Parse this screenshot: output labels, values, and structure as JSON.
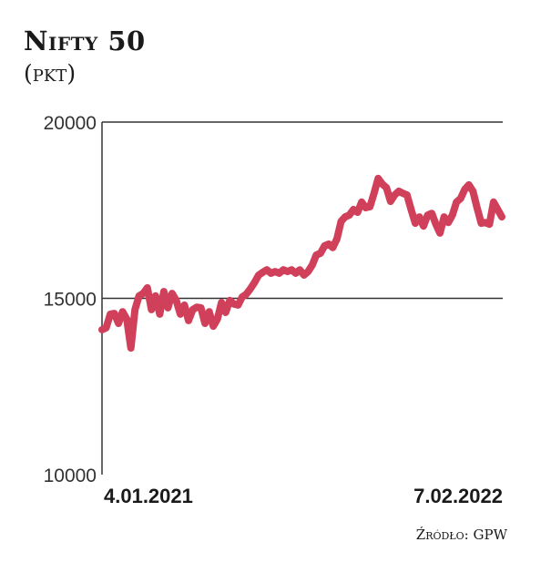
{
  "title": "Nifty 50",
  "unit": "(pkt)",
  "source": "Źródło: GPW",
  "colors": {
    "line": "#d1405a",
    "axis": "#333333"
  },
  "chart_data": {
    "type": "line",
    "title": "Nifty 50",
    "ylabel": "(pkt)",
    "xlabel": "",
    "ylim": [
      10000,
      20000
    ],
    "yticks": [
      "10000",
      "15000",
      "20000"
    ],
    "ytick_values": [
      10000,
      15000,
      20000
    ],
    "xtick_labels": [
      "4.01.2021",
      "7.02.2022"
    ],
    "grid": "horizontal at 15000 and 20000",
    "series": [
      {
        "name": "Nifty 50",
        "values": [
          14110,
          14160,
          14550,
          14570,
          14290,
          14620,
          14410,
          13590,
          14680,
          15070,
          15140,
          15300,
          14680,
          15070,
          14550,
          15190,
          14730,
          15140,
          14940,
          14550,
          14810,
          14370,
          14680,
          14750,
          14730,
          14290,
          14620,
          14210,
          14410,
          14880,
          14600,
          14940,
          14840,
          14810,
          15040,
          15120,
          15270,
          15450,
          15660,
          15740,
          15810,
          15710,
          15760,
          15710,
          15810,
          15760,
          15810,
          15710,
          15810,
          15660,
          15760,
          15940,
          16230,
          16280,
          16490,
          16540,
          16440,
          16690,
          17180,
          17310,
          17360,
          17520,
          17440,
          17730,
          17570,
          17600,
          17980,
          18400,
          18240,
          18140,
          17750,
          17930,
          18040,
          17980,
          17930,
          17520,
          17130,
          17310,
          17050,
          17360,
          17410,
          17100,
          16850,
          17310,
          17150,
          17360,
          17730,
          17830,
          18090,
          18220,
          18040,
          17570,
          17130,
          17150,
          17100,
          17730,
          17520,
          17310
        ]
      }
    ]
  }
}
